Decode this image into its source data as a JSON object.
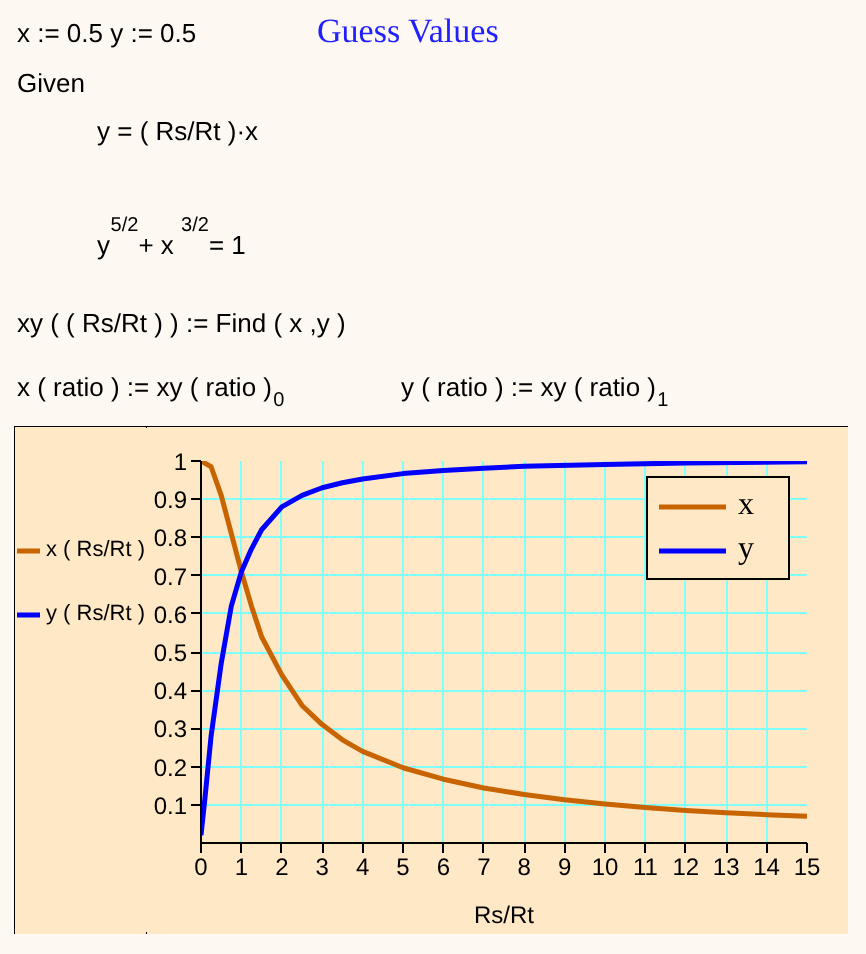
{
  "chart_data": {
    "type": "line",
    "annotations": [
      "x := 0.5 y := 0.5",
      "Guess Values",
      "Given",
      "y = ( Rs/Rt )·x",
      "y$^{5/2}$ + x$^{3/2}$ = 1",
      "xy ( ( Rs/Rt ) ) := Find ( x ,y )",
      "x ( ratio ) := xy ( ratio )$_{0}$",
      "y ( ratio ) := xy ( ratio )$_{1}$",
      "x ( Rs/Rt )",
      "y ( Rs/Rt )"
    ],
    "xlabel": "Rs/Rt",
    "xlim": [
      0,
      15
    ],
    "xticks": [
      0,
      1,
      2,
      3,
      4,
      5,
      6,
      7,
      8,
      9,
      10,
      11,
      12,
      13,
      14,
      15
    ],
    "ylim": [
      0,
      1
    ],
    "yticks": [
      0.1,
      0.2,
      0.3,
      0.4,
      0.5,
      0.6,
      0.7,
      0.8,
      0.9,
      1
    ],
    "grid": true,
    "legend": "top right",
    "series": [
      {
        "name": "x",
        "color": "#c86400",
        "x": [
          0,
          0.25,
          0.5,
          0.75,
          1,
          1.25,
          1.5,
          2,
          2.5,
          3,
          3.5,
          4,
          5,
          6,
          7,
          8,
          9,
          10,
          11,
          12,
          13,
          14,
          15
        ],
        "values": [
          1,
          0.985,
          0.91,
          0.81,
          0.71,
          0.62,
          0.54,
          0.44,
          0.36,
          0.31,
          0.27,
          0.24,
          0.197,
          0.167,
          0.144,
          0.127,
          0.113,
          0.102,
          0.093,
          0.085,
          0.079,
          0.074,
          0.07
        ]
      },
      {
        "name": "y",
        "color": "#0000ff",
        "x": [
          0,
          0.1,
          0.25,
          0.5,
          0.75,
          1,
          1.25,
          1.5,
          2,
          2.5,
          3,
          3.5,
          4,
          5,
          6,
          7,
          8,
          10,
          12,
          15
        ],
        "values": [
          0.02,
          0.12,
          0.28,
          0.47,
          0.62,
          0.71,
          0.77,
          0.82,
          0.88,
          0.91,
          0.93,
          0.943,
          0.953,
          0.967,
          0.975,
          0.981,
          0.986,
          0.991,
          0.995,
          0.998
        ]
      }
    ]
  }
}
